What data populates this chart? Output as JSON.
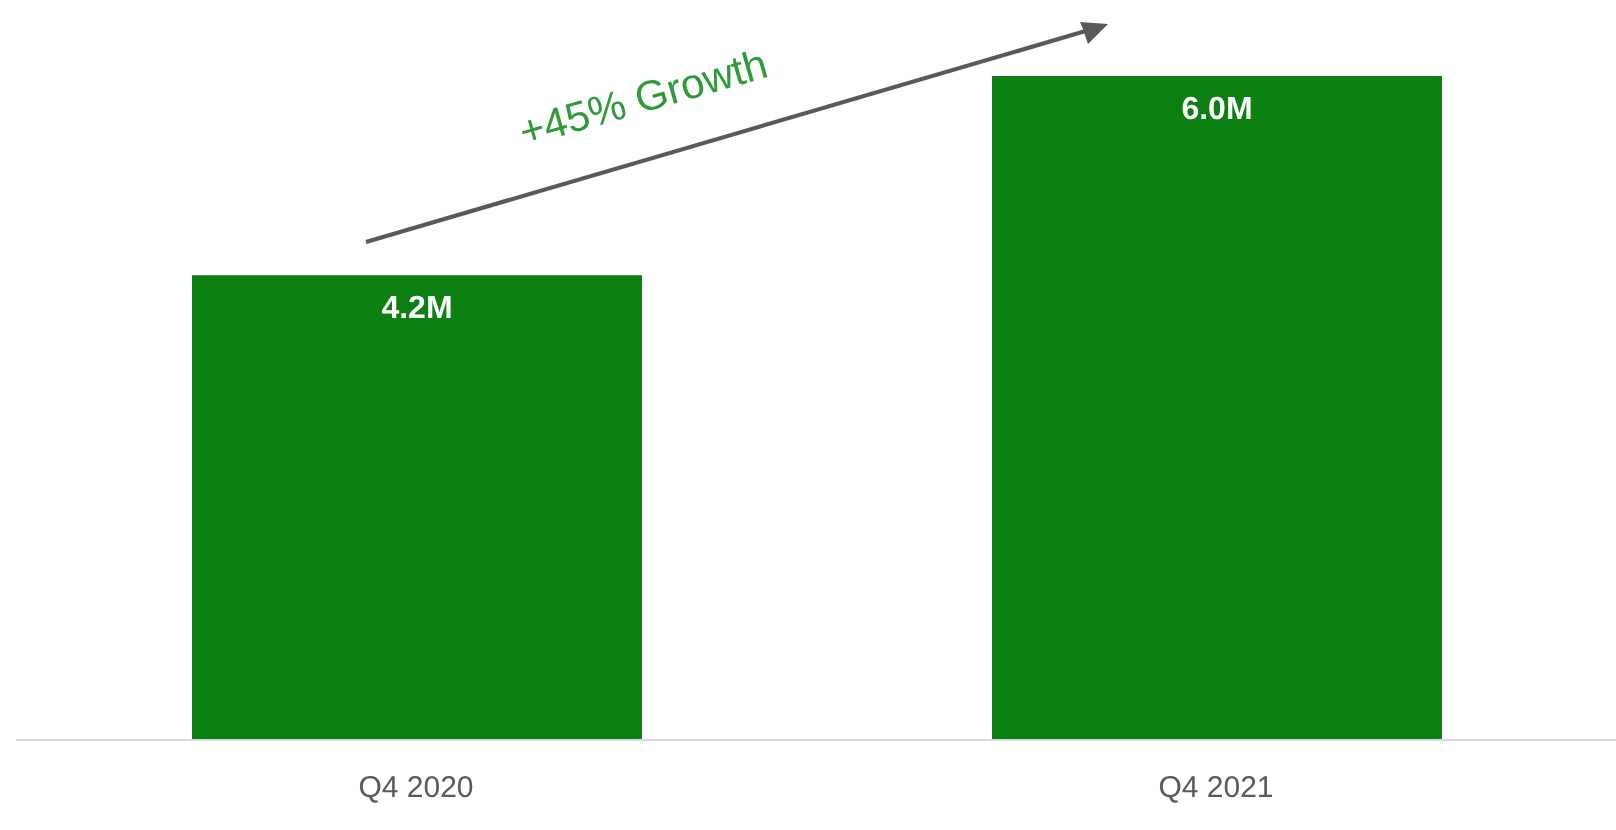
{
  "chart_data": {
    "type": "bar",
    "categories": [
      "Q4 2020",
      "Q4 2021"
    ],
    "values": [
      4.2,
      6.0
    ],
    "value_labels": [
      "4.2M",
      "6.0M"
    ],
    "color": "#0c7f12",
    "annotations": [
      "+45% Growth"
    ]
  }
}
